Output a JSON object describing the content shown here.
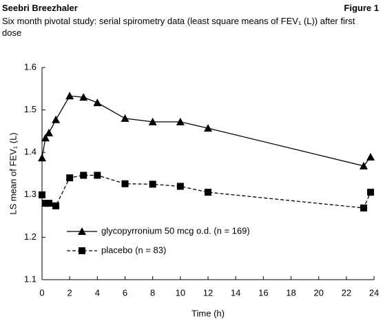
{
  "header": {
    "title": "Seebri Breezhaler",
    "figure": "Figure 1",
    "subtitle": "Six month pivotal study: serial spirometry data (least square means of FEV₁ (L)) after first dose"
  },
  "chart_data": {
    "type": "line",
    "x_label": "Time (h)",
    "y_label": "LS mean of FEV₁ (L)",
    "x": [
      0,
      0.25,
      0.5,
      1,
      2,
      3,
      4,
      6,
      8,
      10,
      12,
      23.25,
      23.75
    ],
    "series": [
      {
        "name": "glycopyrronium 50 mcg o.d. (n = 169)",
        "color": "#000000",
        "marker": "triangle",
        "dashed": false,
        "values": [
          1.387,
          1.434,
          1.446,
          1.477,
          1.533,
          1.53,
          1.517,
          1.48,
          1.472,
          1.472,
          1.457,
          1.368,
          1.389
        ]
      },
      {
        "name": "placebo (n = 83)",
        "color": "#000000",
        "marker": "square",
        "dashed": true,
        "values": [
          1.3,
          1.28,
          1.28,
          1.274,
          1.34,
          1.346,
          1.346,
          1.326,
          1.325,
          1.32,
          1.306,
          1.269,
          1.306
        ]
      }
    ],
    "xlim": [
      0,
      24
    ],
    "xticks": [
      0,
      2,
      4,
      6,
      8,
      10,
      12,
      14,
      16,
      18,
      20,
      22,
      24
    ],
    "ylim": [
      1.1,
      1.6
    ],
    "yticks": [
      1.1,
      1.2,
      1.3,
      1.4,
      1.5,
      1.6
    ],
    "legend": "lower left"
  }
}
